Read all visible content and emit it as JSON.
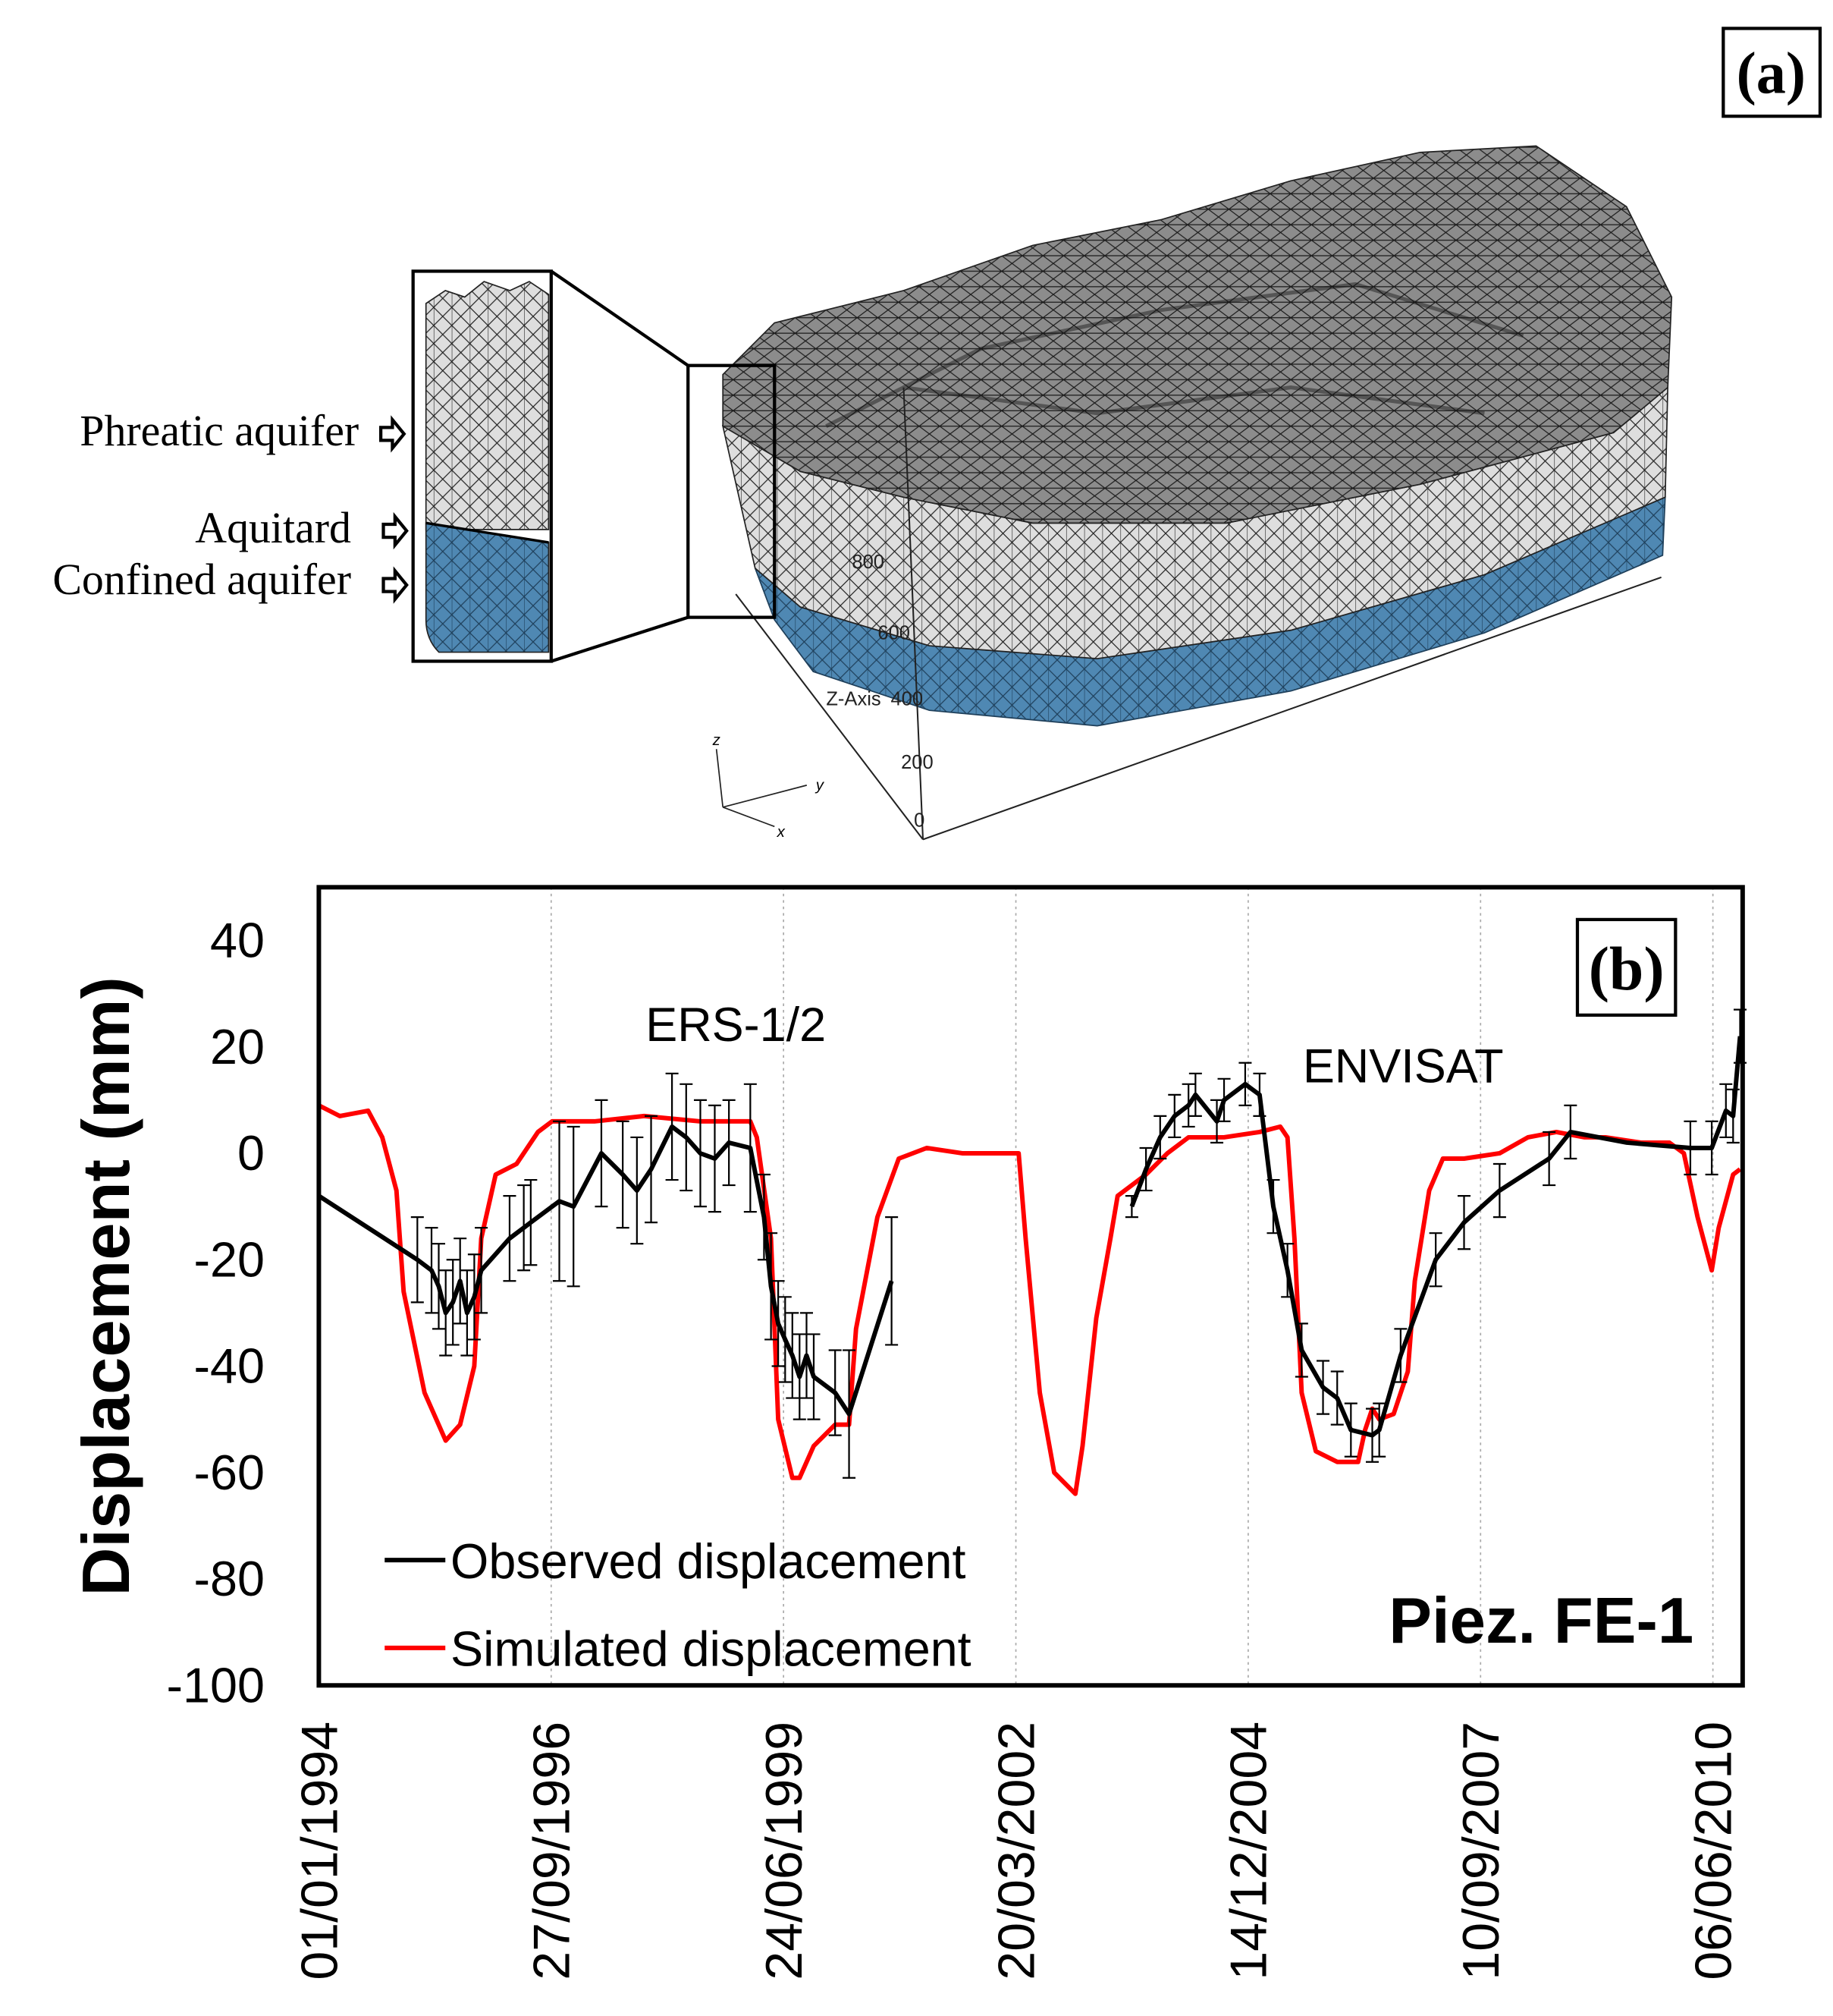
{
  "panel_a": {
    "label": "(a)",
    "layers": [
      "Phreatic aquifer",
      "Aquitard",
      "Confined aquifer"
    ],
    "arrow_icon": "hollow-right-arrow",
    "z_axis_label": "Z-Axis",
    "z_ticks": [
      "800",
      "600",
      "400",
      "200",
      "0"
    ],
    "triad": {
      "z": "z",
      "y": "y",
      "x": "x"
    },
    "colors": {
      "mesh_top": "#8a8a8a",
      "mesh_wall": "#dcdcdc",
      "confined_layer": "#4f88b3"
    }
  },
  "chart_data": {
    "type": "line",
    "panel_label": "(b)",
    "ylabel": "Displacement (mm)",
    "xlabel": "",
    "ylim": [
      -100,
      50
    ],
    "yticks": [
      40,
      20,
      0,
      -20,
      -40,
      -60,
      -80,
      -100
    ],
    "xlim": [
      "1994-01-01",
      "2010-10-12"
    ],
    "xticks": [
      "01/01/1994",
      "27/09/1996",
      "24/06/1999",
      "20/03/2002",
      "14/12/2004",
      "10/09/2007",
      "06/06/2010"
    ],
    "grid": "vertical dotted",
    "legend_position": "bottom-left",
    "annotations": [
      "ERS-1/2",
      "ENVISAT",
      "Piez. FE-1"
    ],
    "series": [
      {
        "name": "Observed displacement",
        "color": "#000000",
        "error_bars": true,
        "segments": [
          {
            "label": "ERS-1/2",
            "points": [
              [
                "1994-01",
                -8,
                null
              ],
              [
                "1995-03",
                -20,
                8
              ],
              [
                "1995-05",
                -22,
                8
              ],
              [
                "1995-06",
                -25,
                8
              ],
              [
                "1995-07",
                -30,
                8
              ],
              [
                "1995-08",
                -28,
                8
              ],
              [
                "1995-09",
                -24,
                8
              ],
              [
                "1995-10",
                -30,
                8
              ],
              [
                "1995-11",
                -27,
                8
              ],
              [
                "1995-12",
                -22,
                8
              ],
              [
                "1996-04",
                -16,
                8
              ],
              [
                "1996-06",
                -14,
                8
              ],
              [
                "1996-07",
                -13,
                8
              ],
              [
                "1996-11",
                -9,
                15
              ],
              [
                "1997-01",
                -10,
                15
              ],
              [
                "1997-05",
                0,
                10
              ],
              [
                "1997-08",
                -4,
                10
              ],
              [
                "1997-10",
                -7,
                10
              ],
              [
                "1997-12",
                -3,
                10
              ],
              [
                "1998-03",
                5,
                10
              ],
              [
                "1998-05",
                3,
                10
              ],
              [
                "1998-07",
                0,
                10
              ],
              [
                "1998-09",
                -1,
                10
              ],
              [
                "1998-11",
                2,
                8
              ],
              [
                "1999-02",
                1,
                12
              ],
              [
                "1999-04",
                -12,
                8
              ],
              [
                "1999-05",
                -25,
                10
              ],
              [
                "1999-06",
                -32,
                8
              ],
              [
                "1999-07",
                -35,
                8
              ],
              [
                "1999-08",
                -38,
                8
              ],
              [
                "1999-09",
                -42,
                8
              ],
              [
                "1999-10",
                -38,
                8
              ],
              [
                "1999-11",
                -42,
                8
              ],
              [
                "2000-02",
                -45,
                8
              ],
              [
                "2000-04",
                -49,
                12
              ],
              [
                "2000-10",
                -24,
                12
              ]
            ]
          },
          {
            "label": "ENVISAT",
            "points": [
              [
                "2003-08",
                -10,
                2
              ],
              [
                "2003-10",
                -3,
                4
              ],
              [
                "2003-12",
                3,
                4
              ],
              [
                "2004-02",
                7,
                4
              ],
              [
                "2004-04",
                9,
                4
              ],
              [
                "2004-05",
                11,
                4
              ],
              [
                "2004-08",
                6,
                4
              ],
              [
                "2004-09",
                10,
                4
              ],
              [
                "2004-12",
                13,
                4
              ],
              [
                "2005-02",
                11,
                4
              ],
              [
                "2005-04",
                -10,
                5
              ],
              [
                "2005-06",
                -22,
                5
              ],
              [
                "2005-08",
                -37,
                5
              ],
              [
                "2005-11",
                -44,
                5
              ],
              [
                "2006-01",
                -46,
                5
              ],
              [
                "2006-03",
                -52,
                5
              ],
              [
                "2006-06",
                -53,
                5
              ],
              [
                "2006-07",
                -52,
                5
              ],
              [
                "2006-10",
                -38,
                5
              ],
              [
                "2007-03",
                -20,
                5
              ],
              [
                "2007-07",
                -13,
                5
              ],
              [
                "2007-12",
                -7,
                5
              ],
              [
                "2008-07",
                -1,
                5
              ],
              [
                "2008-10",
                4,
                5
              ],
              [
                "2009-06",
                2,
                null
              ],
              [
                "2010-03",
                1,
                5
              ],
              [
                "2010-06",
                1,
                5
              ],
              [
                "2010-08",
                8,
                5
              ],
              [
                "2010-09",
                7,
                5
              ],
              [
                "2010-10",
                22,
                5
              ]
            ]
          }
        ]
      },
      {
        "name": "Simulated displacement",
        "color": "#ff0000",
        "points": [
          [
            "1994-01",
            9
          ],
          [
            "1994-04",
            7
          ],
          [
            "1994-08",
            8
          ],
          [
            "1994-10",
            3
          ],
          [
            "1994-12",
            -7
          ],
          [
            "1995-01",
            -26
          ],
          [
            "1995-04",
            -45
          ],
          [
            "1995-07",
            -54
          ],
          [
            "1995-09",
            -51
          ],
          [
            "1995-11",
            -40
          ],
          [
            "1995-12",
            -16
          ],
          [
            "1996-02",
            -4
          ],
          [
            "1996-05",
            -2
          ],
          [
            "1996-08",
            4
          ],
          [
            "1996-10",
            6
          ],
          [
            "1997-04",
            6
          ],
          [
            "1997-11",
            7
          ],
          [
            "1998-07",
            6
          ],
          [
            "1998-09",
            6
          ],
          [
            "1999-02",
            6
          ],
          [
            "1999-03",
            3
          ],
          [
            "1999-05",
            -16
          ],
          [
            "1999-06",
            -50
          ],
          [
            "1999-08",
            -61
          ],
          [
            "1999-09",
            -61
          ],
          [
            "1999-11",
            -55
          ],
          [
            "2000-02",
            -51
          ],
          [
            "2000-04",
            -51
          ],
          [
            "2000-05",
            -33
          ],
          [
            "2000-08",
            -12
          ],
          [
            "2000-11",
            -1
          ],
          [
            "2001-03",
            1
          ],
          [
            "2001-08",
            0
          ],
          [
            "2002-01",
            0
          ],
          [
            "2002-04",
            0
          ],
          [
            "2002-05",
            -16
          ],
          [
            "2002-07",
            -45
          ],
          [
            "2002-09",
            -60
          ],
          [
            "2002-12",
            -64
          ],
          [
            "2003-01",
            -55
          ],
          [
            "2003-03",
            -31
          ],
          [
            "2003-05",
            -16
          ],
          [
            "2003-06",
            -8
          ],
          [
            "2003-10",
            -4
          ],
          [
            "2004-01",
            0
          ],
          [
            "2004-04",
            3
          ],
          [
            "2004-09",
            3
          ],
          [
            "2005-02",
            4
          ],
          [
            "2005-05",
            5
          ],
          [
            "2005-06",
            3
          ],
          [
            "2005-07",
            -16
          ],
          [
            "2005-08",
            -45
          ],
          [
            "2005-10",
            -56
          ],
          [
            "2006-01",
            -58
          ],
          [
            "2006-04",
            -58
          ],
          [
            "2006-05",
            -52
          ],
          [
            "2006-06",
            -48
          ],
          [
            "2006-07",
            -50
          ],
          [
            "2006-09",
            -49
          ],
          [
            "2006-11",
            -41
          ],
          [
            "2006-12",
            -24
          ],
          [
            "2007-02",
            -7
          ],
          [
            "2007-04",
            -1
          ],
          [
            "2007-07",
            -1
          ],
          [
            "2007-12",
            0
          ],
          [
            "2008-04",
            3
          ],
          [
            "2008-08",
            4
          ],
          [
            "2008-12",
            3
          ],
          [
            "2009-03",
            3
          ],
          [
            "2009-08",
            2
          ],
          [
            "2009-12",
            2
          ],
          [
            "2010-02",
            0
          ],
          [
            "2010-04",
            -12
          ],
          [
            "2010-06",
            -22
          ],
          [
            "2010-07",
            -14
          ],
          [
            "2010-09",
            -4
          ],
          [
            "2010-10",
            -3
          ]
        ]
      }
    ]
  }
}
